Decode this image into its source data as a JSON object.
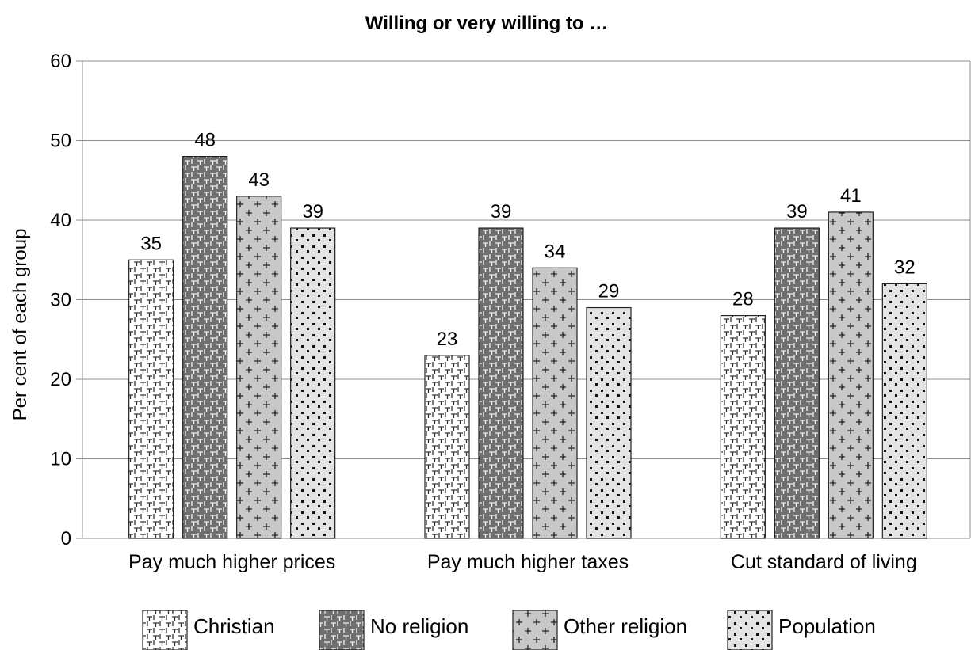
{
  "chart_data": {
    "type": "bar",
    "title": "Willing or very willing to …",
    "ylabel": "Per cent of each group",
    "xlabel": "",
    "ylim": [
      0,
      60
    ],
    "yticks": [
      0,
      10,
      20,
      30,
      40,
      50,
      60
    ],
    "grid": true,
    "legend_position": "bottom",
    "categories": [
      "Pay much higher prices",
      "Pay much higher taxes",
      "Cut standard of living"
    ],
    "series": [
      {
        "name": "Christian",
        "values": [
          35,
          23,
          28
        ],
        "labels": [
          "35",
          "23",
          "28"
        ],
        "fill": "#ffffff",
        "pattern": "christian"
      },
      {
        "name": "No religion",
        "values": [
          48,
          39,
          39
        ],
        "labels": [
          "48",
          "39",
          "39"
        ],
        "fill": "#6e6e6e",
        "pattern": "norel"
      },
      {
        "name": "Other religion",
        "values": [
          43,
          34,
          41
        ],
        "labels": [
          "43",
          "34",
          "41"
        ],
        "fill": "#c8c8c8",
        "pattern": "other"
      },
      {
        "name": "Population",
        "values": [
          39,
          29,
          32
        ],
        "labels": [
          "39",
          "29",
          "32"
        ],
        "fill": "#e3e3e3",
        "pattern": "pop"
      }
    ]
  }
}
